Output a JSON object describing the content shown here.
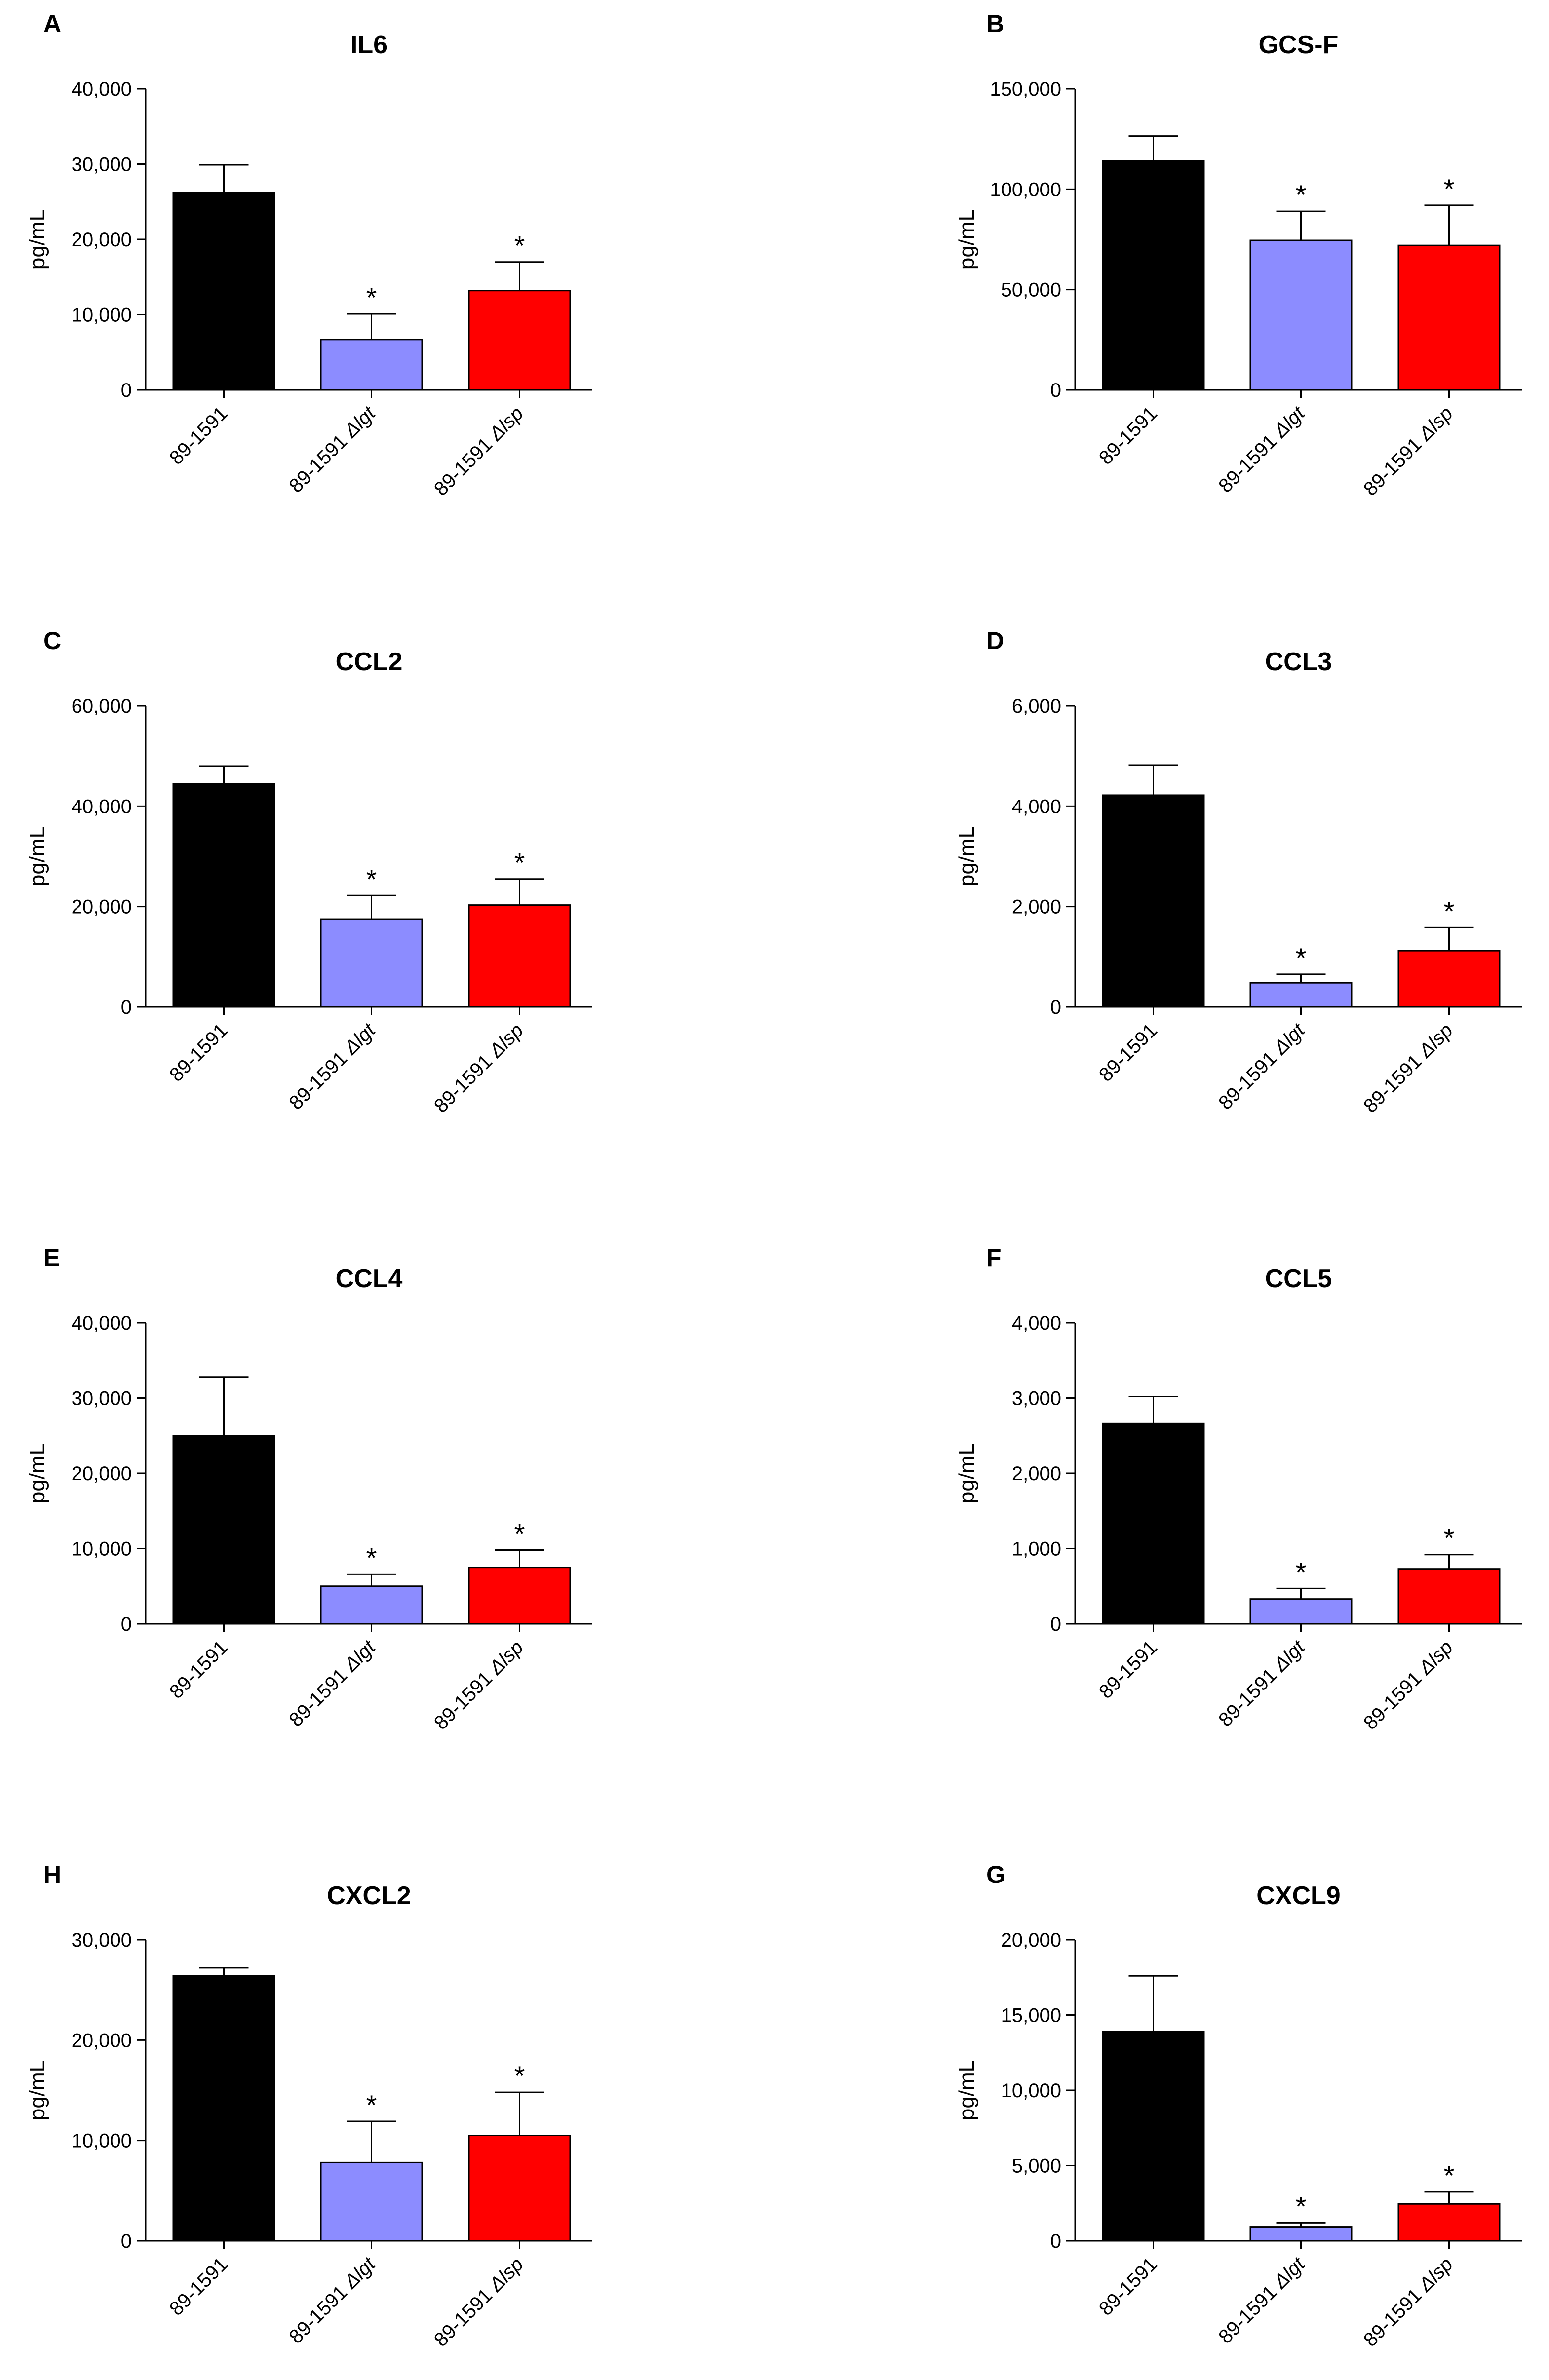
{
  "colors": {
    "strain_wt": "#000000",
    "strain_lgt": "#8c8cff",
    "strain_lsp": "#ff0000"
  },
  "chart_data": [
    {
      "panel": "A",
      "title": "IL6",
      "type": "bar",
      "ylabel": "pg/mL",
      "ylim": [
        0,
        40000
      ],
      "yticks": [
        0,
        10000,
        20000,
        30000,
        40000
      ],
      "ytick_labels": [
        "0",
        "10,000",
        "20,000",
        "30,000",
        "40,000"
      ],
      "categories": [
        {
          "label": "89-1591",
          "mutant": ""
        },
        {
          "label": "89-1591 ",
          "mutant": "Δlgt"
        },
        {
          "label": "89-1591 ",
          "mutant": "Δlsp"
        }
      ],
      "values": [
        26200,
        6700,
        13200
      ],
      "errors": [
        3700,
        3400,
        3800
      ],
      "significance": [
        "",
        "*",
        "*"
      ]
    },
    {
      "panel": "B",
      "title": "GCS-F",
      "type": "bar",
      "ylabel": "pg/mL",
      "ylim": [
        0,
        150000
      ],
      "yticks": [
        0,
        50000,
        100000,
        150000
      ],
      "ytick_labels": [
        "0",
        "50,000",
        "100,000",
        "150,000"
      ],
      "categories": [
        {
          "label": "89-1591",
          "mutant": ""
        },
        {
          "label": "89-1591 ",
          "mutant": "Δlgt"
        },
        {
          "label": "89-1591 ",
          "mutant": "Δlsp"
        }
      ],
      "values": [
        114000,
        74500,
        72000
      ],
      "errors": [
        12500,
        14500,
        20000
      ],
      "significance": [
        "",
        "*",
        "*"
      ]
    },
    {
      "panel": "C",
      "title": "CCL2",
      "type": "bar",
      "ylabel": "pg/mL",
      "ylim": [
        0,
        60000
      ],
      "yticks": [
        0,
        20000,
        40000,
        60000
      ],
      "ytick_labels": [
        "0",
        "20,000",
        "40,000",
        "60,000"
      ],
      "categories": [
        {
          "label": "89-1591",
          "mutant": ""
        },
        {
          "label": "89-1591 ",
          "mutant": "Δlgt"
        },
        {
          "label": "89-1591 ",
          "mutant": "Δlsp"
        }
      ],
      "values": [
        44500,
        17500,
        20300
      ],
      "errors": [
        3500,
        4700,
        5200
      ],
      "significance": [
        "",
        "*",
        "*"
      ]
    },
    {
      "panel": "D",
      "title": "CCL3",
      "type": "bar",
      "ylabel": "pg/mL",
      "ylim": [
        0,
        6000
      ],
      "yticks": [
        0,
        2000,
        4000,
        6000
      ],
      "ytick_labels": [
        "0",
        "2,000",
        "4,000",
        "6,000"
      ],
      "categories": [
        {
          "label": "89-1591",
          "mutant": ""
        },
        {
          "label": "89-1591 ",
          "mutant": "Δlgt"
        },
        {
          "label": "89-1591 ",
          "mutant": "Δlsp"
        }
      ],
      "values": [
        4220,
        480,
        1120
      ],
      "errors": [
        600,
        170,
        460
      ],
      "significance": [
        "",
        "*",
        "*"
      ]
    },
    {
      "panel": "E",
      "title": "CCL4",
      "type": "bar",
      "ylabel": "pg/mL",
      "ylim": [
        0,
        40000
      ],
      "yticks": [
        0,
        10000,
        20000,
        30000,
        40000
      ],
      "ytick_labels": [
        "0",
        "10,000",
        "20,000",
        "30,000",
        "40,000"
      ],
      "categories": [
        {
          "label": "89-1591",
          "mutant": ""
        },
        {
          "label": "89-1591 ",
          "mutant": "Δlgt"
        },
        {
          "label": "89-1591 ",
          "mutant": "Δlsp"
        }
      ],
      "values": [
        25000,
        5000,
        7500
      ],
      "errors": [
        7800,
        1600,
        2300
      ],
      "significance": [
        "",
        "*",
        "*"
      ]
    },
    {
      "panel": "F",
      "title": "CCL5",
      "type": "bar",
      "ylabel": "pg/mL",
      "ylim": [
        0,
        4000
      ],
      "yticks": [
        0,
        1000,
        2000,
        3000,
        4000
      ],
      "ytick_labels": [
        "0",
        "1,000",
        "2,000",
        "3,000",
        "4,000"
      ],
      "categories": [
        {
          "label": "89-1591",
          "mutant": ""
        },
        {
          "label": "89-1591 ",
          "mutant": "Δlgt"
        },
        {
          "label": "89-1591 ",
          "mutant": "Δlsp"
        }
      ],
      "values": [
        2660,
        330,
        730
      ],
      "errors": [
        360,
        140,
        190
      ],
      "significance": [
        "",
        "*",
        "*"
      ]
    },
    {
      "panel": "H",
      "title": "CXCL2",
      "type": "bar",
      "ylabel": "pg/mL",
      "ylim": [
        0,
        30000
      ],
      "yticks": [
        0,
        10000,
        20000,
        30000
      ],
      "ytick_labels": [
        "0",
        "10,000",
        "20,000",
        "30,000"
      ],
      "categories": [
        {
          "label": "89-1591",
          "mutant": ""
        },
        {
          "label": "89-1591 ",
          "mutant": "Δlgt"
        },
        {
          "label": "89-1591 ",
          "mutant": "Δlsp"
        }
      ],
      "values": [
        26400,
        7800,
        10500
      ],
      "errors": [
        800,
        4100,
        4300
      ],
      "significance": [
        "",
        "*",
        "*"
      ]
    },
    {
      "panel": "G",
      "title": "CXCL9",
      "type": "bar",
      "ylabel": "pg/mL",
      "ylim": [
        0,
        20000
      ],
      "yticks": [
        0,
        5000,
        10000,
        15000,
        20000
      ],
      "ytick_labels": [
        "0",
        "5,000",
        "10,000",
        "15,000",
        "20,000"
      ],
      "categories": [
        {
          "label": "89-1591",
          "mutant": ""
        },
        {
          "label": "89-1591 ",
          "mutant": "Δlgt"
        },
        {
          "label": "89-1591 ",
          "mutant": "Δlsp"
        }
      ],
      "values": [
        13900,
        900,
        2450
      ],
      "errors": [
        3700,
        300,
        800
      ],
      "significance": [
        "",
        "*",
        "*"
      ]
    }
  ]
}
